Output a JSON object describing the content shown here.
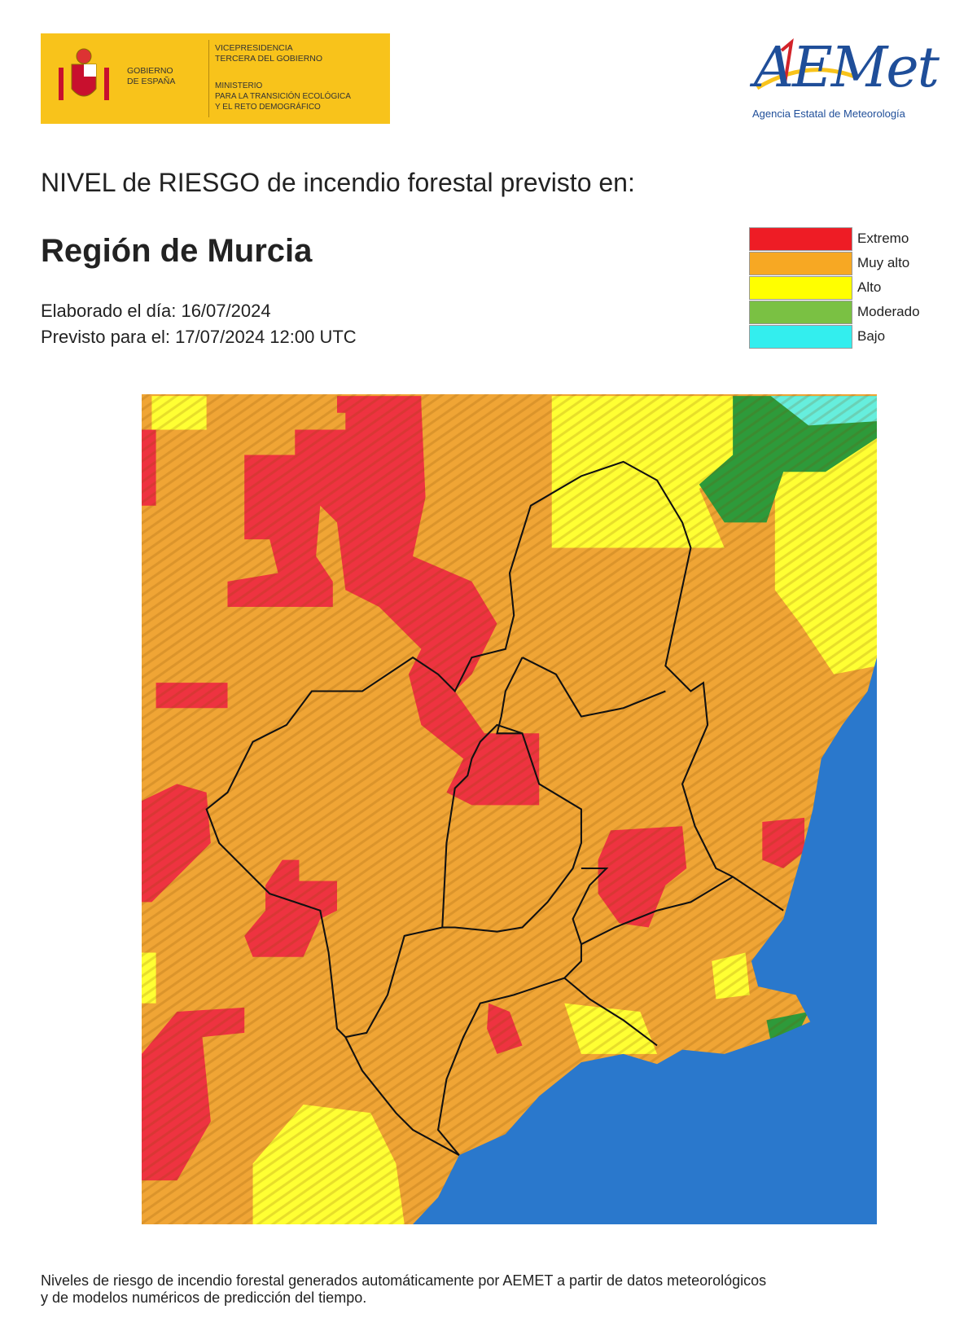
{
  "header": {
    "gov_logo": {
      "name_lines": [
        "GOBIERNO",
        "DE ESPAÑA"
      ],
      "vice_lines": [
        "VICEPRESIDENCIA",
        "TERCERA DEL GOBIERNO"
      ],
      "ministry_lines": [
        "MINISTERIO",
        "PARA LA TRANSICIÓN ECOLÓGICA",
        "Y EL RETO DEMOGRÁFICO"
      ]
    },
    "aemet_logo": {
      "name": "AEMet",
      "subtitle": "Agencia Estatal de Meteorología"
    }
  },
  "title": "NIVEL de RIESGO de incendio forestal previsto en:",
  "region": "Región de Murcia",
  "issued": "Elaborado el día: 16/07/2024",
  "valid": "Previsto para el: 17/07/2024 12:00 UTC",
  "legend": [
    {
      "label": "Extremo",
      "color": "#ee1c25"
    },
    {
      "label": "Muy alto",
      "color": "#f7a823"
    },
    {
      "label": "Alto",
      "color": "#ffff00"
    },
    {
      "label": "Moderado",
      "color": "#7ac143"
    },
    {
      "label": "Bajo",
      "color": "#33eeee"
    }
  ],
  "footer": [
    "Niveles de riesgo de incendio forestal generados automáticamente por AEMET a partir de datos meteorológicos",
    "y de modelos numéricos de predicción del tiempo."
  ]
}
